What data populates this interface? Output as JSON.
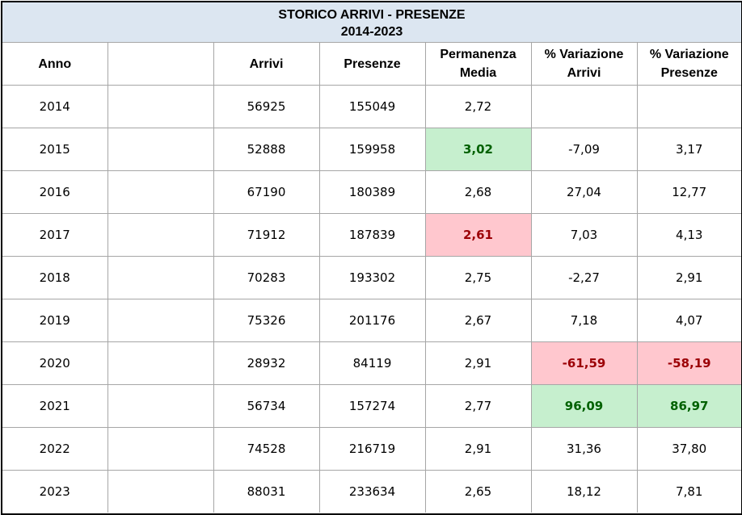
{
  "title": {
    "line1": "STORICO ARRIVI - PRESENZE",
    "line2": "2014-2023"
  },
  "columns": [
    [
      "Anno"
    ],
    [
      ""
    ],
    [
      "Arrivi"
    ],
    [
      "Presenze"
    ],
    [
      "Permanenza",
      "Media"
    ],
    [
      "% Variazione",
      "Arrivi"
    ],
    [
      "% Variazione",
      "Presenze"
    ]
  ],
  "rows": [
    {
      "anno": "2014",
      "blank": "",
      "arrivi": "56925",
      "presenze": "155049",
      "permanenza": "2,72",
      "var_arrivi": "",
      "var_presenze": ""
    },
    {
      "anno": "2015",
      "blank": "",
      "arrivi": "52888",
      "presenze": "159958",
      "permanenza": "3,02",
      "var_arrivi": "-7,09",
      "var_presenze": "3,17"
    },
    {
      "anno": "2016",
      "blank": "",
      "arrivi": "67190",
      "presenze": "180389",
      "permanenza": "2,68",
      "var_arrivi": "27,04",
      "var_presenze": "12,77"
    },
    {
      "anno": "2017",
      "blank": "",
      "arrivi": "71912",
      "presenze": "187839",
      "permanenza": "2,61",
      "var_arrivi": "7,03",
      "var_presenze": "4,13"
    },
    {
      "anno": "2018",
      "blank": "",
      "arrivi": "70283",
      "presenze": "193302",
      "permanenza": "2,75",
      "var_arrivi": "-2,27",
      "var_presenze": "2,91"
    },
    {
      "anno": "2019",
      "blank": "",
      "arrivi": "75326",
      "presenze": "201176",
      "permanenza": "2,67",
      "var_arrivi": "7,18",
      "var_presenze": "4,07"
    },
    {
      "anno": "2020",
      "blank": "",
      "arrivi": "28932",
      "presenze": "84119",
      "permanenza": "2,91",
      "var_arrivi": "-61,59",
      "var_presenze": "-58,19"
    },
    {
      "anno": "2021",
      "blank": "",
      "arrivi": "56734",
      "presenze": "157274",
      "permanenza": "2,77",
      "var_arrivi": "96,09",
      "var_presenze": "86,97"
    },
    {
      "anno": "2022",
      "blank": "",
      "arrivi": "74528",
      "presenze": "216719",
      "permanenza": "2,91",
      "var_arrivi": "31,36",
      "var_presenze": "37,80"
    },
    {
      "anno": "2023",
      "blank": "",
      "arrivi": "88031",
      "presenze": "233634",
      "permanenza": "2,65",
      "var_arrivi": "18,12",
      "var_presenze": "7,81"
    }
  ],
  "highlights": {
    "1.permanenza": "green",
    "3.permanenza": "red",
    "6.var_arrivi": "red",
    "6.var_presenze": "red",
    "7.var_arrivi": "green",
    "7.var_presenze": "green"
  },
  "colors": {
    "title_background": "#dce6f1",
    "highlight_green_fill": "#c6efce",
    "highlight_green_text": "#006100",
    "highlight_red_fill": "#ffc7ce",
    "highlight_red_text": "#9c0006",
    "grid": "#a6a6a6"
  }
}
